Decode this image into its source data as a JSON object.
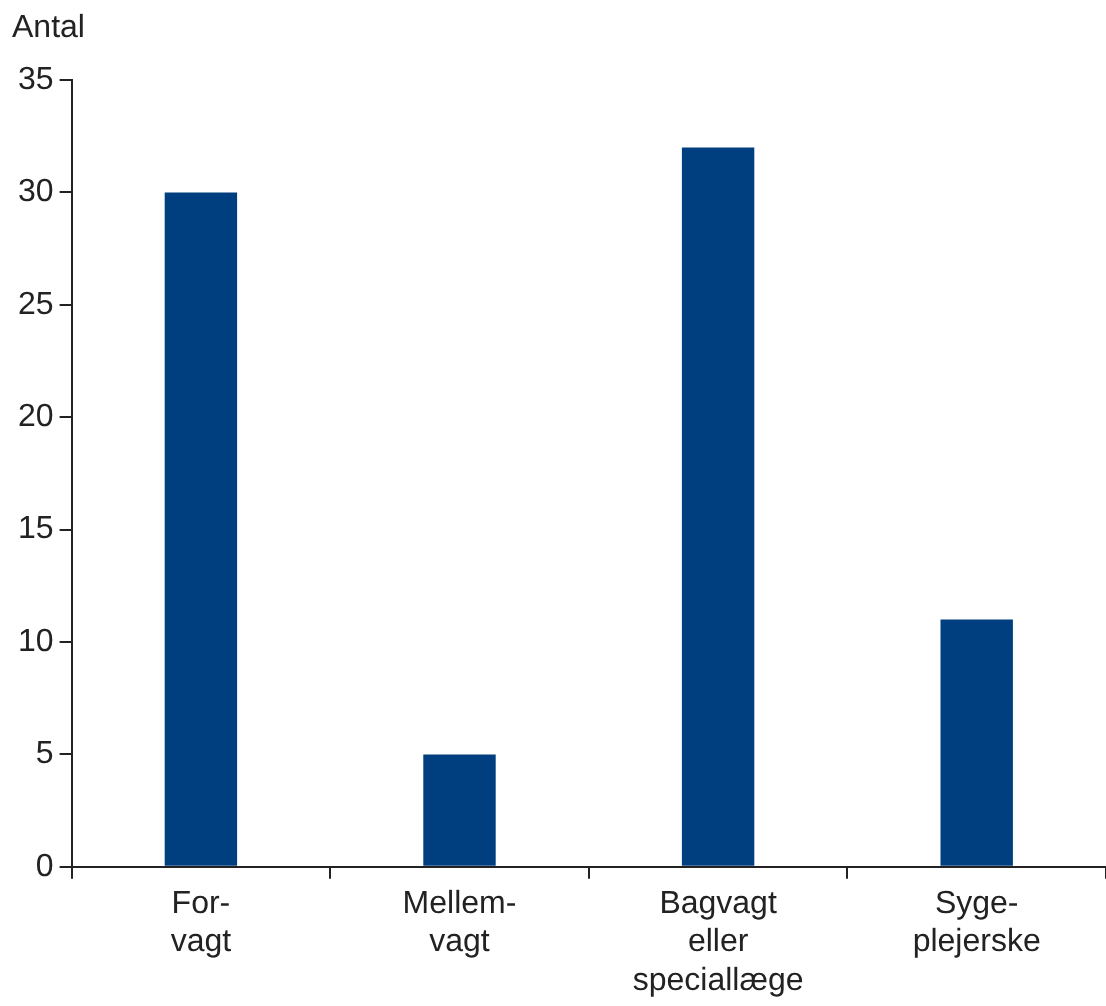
{
  "chart_data": {
    "type": "bar",
    "ylabel": "Antal",
    "categories": [
      "For-\nvagt",
      "Mellem-\nvagt",
      "Bagvagt\neller\nspeciallæge",
      "Syge-\nplejerske"
    ],
    "values": [
      30,
      5,
      32,
      11
    ],
    "color": "#003f7f",
    "ylim": [
      0,
      35
    ],
    "yticks": [
      0,
      5,
      10,
      15,
      20,
      25,
      30,
      35
    ],
    "grid": false,
    "legend": false
  }
}
